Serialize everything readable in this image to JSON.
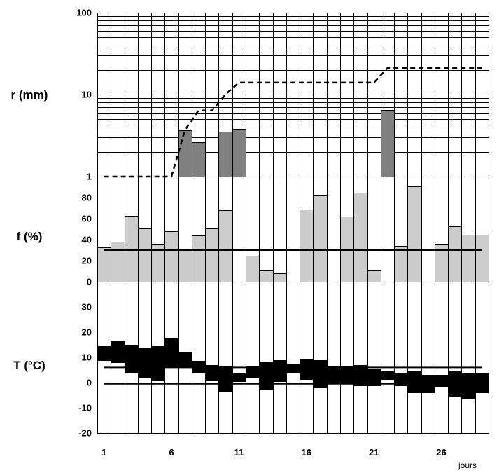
{
  "chart_data": {
    "type": "bar",
    "x": [
      1,
      2,
      3,
      4,
      5,
      6,
      7,
      8,
      9,
      10,
      11,
      12,
      13,
      14,
      15,
      16,
      17,
      18,
      19,
      20,
      21,
      22,
      23,
      24,
      25,
      26,
      27,
      28,
      29
    ],
    "xlim": [
      0.5,
      29.5
    ],
    "xticks": [
      1,
      6,
      11,
      16,
      21,
      26
    ],
    "xlabel": "jours",
    "grid": true,
    "panels": [
      {
        "ylabel": "r (mm)",
        "scale": "log",
        "ylim": [
          1,
          100
        ],
        "yticks": [
          100,
          10,
          1
        ],
        "series": [
          {
            "type": "bar",
            "color": "#808080",
            "values": [
              null,
              null,
              null,
              null,
              null,
              null,
              3.7,
              2.6,
              null,
              3.5,
              3.8,
              null,
              null,
              null,
              null,
              null,
              null,
              null,
              null,
              null,
              null,
              6.5,
              null,
              null,
              null,
              null,
              null,
              null,
              null
            ]
          },
          {
            "type": "line",
            "style": "dashed",
            "color": "#000000",
            "values": [
              1,
              1,
              1,
              1,
              1,
              1,
              3.7,
              6.4,
              6.4,
              10,
              14,
              14,
              14,
              14,
              14,
              14,
              14,
              14,
              14,
              14,
              14,
              21,
              21,
              21,
              21,
              21,
              21,
              21,
              21
            ]
          }
        ]
      },
      {
        "ylabel": "f (%)",
        "scale": "linear",
        "ylim": [
          0,
          100
        ],
        "yticks": [
          80,
          60,
          40,
          20,
          0
        ],
        "series": [
          {
            "type": "bar",
            "color": "#cccccc",
            "values": [
              33,
              38,
              63,
              51,
              36,
              48,
              31,
              44,
              51,
              68,
              null,
              25,
              11,
              8,
              null,
              69,
              83,
              null,
              62,
              85,
              11,
              null,
              34,
              91,
              null,
              36,
              53,
              45,
              45
            ]
          }
        ],
        "reference_lines": [
          30
        ]
      },
      {
        "ylabel": "T (°C)",
        "scale": "linear",
        "ylim": [
          -20,
          40
        ],
        "yticks": [
          30,
          20,
          10,
          0,
          -10,
          -20
        ],
        "series": [
          {
            "type": "range_bar",
            "color": "#000000",
            "base_color": "#ffffff",
            "max": [
              14.5,
              16.5,
              15,
              14,
              14.5,
              17.5,
              12,
              8.5,
              7,
              6.5,
              3.5,
              6.5,
              8,
              9,
              7.5,
              9.5,
              9,
              6.5,
              6.5,
              7,
              5.5,
              4.5,
              3.5,
              4.5,
              3,
              3,
              4.5,
              4,
              4
            ],
            "min": [
              9,
              8,
              4,
              2,
              1,
              6.5,
              6,
              4,
              1,
              -3.5,
              0.5,
              2,
              -2.5,
              0.5,
              4,
              1.5,
              -2,
              0,
              0,
              -1,
              -1,
              1.5,
              -1,
              -4,
              -4,
              -1.5,
              -5.5,
              -6.5,
              -4
            ]
          }
        ],
        "reference_lines": [
          6,
          -0.5
        ]
      }
    ]
  }
}
